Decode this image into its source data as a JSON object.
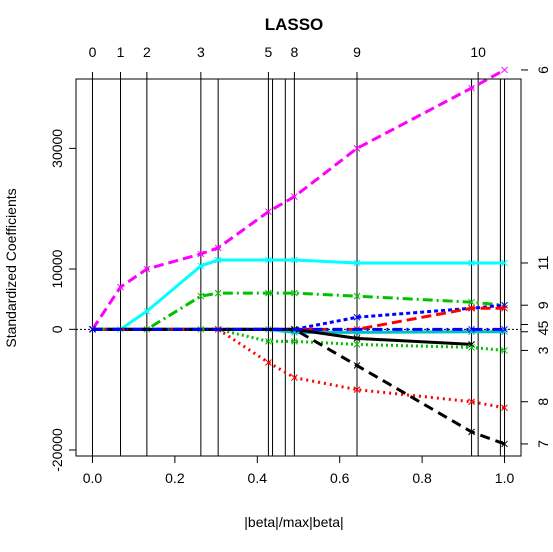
{
  "chart_data": {
    "type": "line",
    "title": "LASSO",
    "xlabel": "|beta|/max|beta|",
    "ylabel": "Standardized Coefficients",
    "xlim": [
      -0.04,
      1.04
    ],
    "ylim": [
      -21000,
      41500
    ],
    "x_ticks": [
      0.0,
      0.2,
      0.4,
      0.6,
      0.8,
      1.0
    ],
    "x_tick_labels": [
      "0.0",
      "0.2",
      "0.4",
      "0.6",
      "0.8",
      "1.0"
    ],
    "y_ticks": [
      -20000,
      0,
      10000,
      30000
    ],
    "y_tick_labels": [
      "-20000",
      "0",
      "10000",
      "30000"
    ],
    "top_axis_positions": [
      0.0,
      0.068,
      0.132,
      0.263,
      0.427,
      0.49,
      0.642,
      0.936
    ],
    "top_axis_labels": [
      "0",
      "1",
      "2",
      "3",
      "5",
      "8",
      "9",
      "10"
    ],
    "right_axis_labels": [
      "6",
      "11",
      "9",
      "5",
      "4",
      "3",
      "8",
      "7"
    ],
    "right_axis_values": [
      43000,
      11000,
      4000,
      800,
      -400,
      -3500,
      -12000,
      -19000
    ],
    "vertical_lines": [
      0.0,
      0.068,
      0.132,
      0.263,
      0.305,
      0.427,
      0.437,
      0.468,
      0.49,
      0.642,
      0.92,
      0.936,
      0.99,
      1.0
    ],
    "grid": false,
    "series": [
      {
        "color": "#ff00ff",
        "dash": "10 5",
        "x": [
          0.0,
          0.068,
          0.132,
          0.263,
          0.305,
          0.427,
          0.49,
          0.642,
          0.92,
          1.0
        ],
        "y": [
          0,
          7000,
          10000,
          12500,
          13500,
          19500,
          22000,
          30000,
          40000,
          43000
        ]
      },
      {
        "color": "#00ffff",
        "dash": "",
        "x": [
          0.0,
          0.068,
          0.132,
          0.263,
          0.305,
          0.427,
          0.49,
          0.642,
          0.92,
          1.0
        ],
        "y": [
          0,
          0,
          3000,
          10500,
          11500,
          11500,
          11500,
          11000,
          11000,
          11000
        ]
      },
      {
        "color": "#00c000",
        "dash": "10 4 2 4",
        "x": [
          0.0,
          0.132,
          0.263,
          0.305,
          0.427,
          0.49,
          0.642,
          0.92,
          1.0
        ],
        "y": [
          0,
          0,
          5500,
          6000,
          6000,
          6000,
          5500,
          4500,
          4000
        ]
      },
      {
        "color": "#0000ff",
        "dash": "4 3",
        "x": [
          0.0,
          0.49,
          0.642,
          0.92,
          1.0
        ],
        "y": [
          0,
          0,
          2000,
          3500,
          4000
        ]
      },
      {
        "color": "#ff0000",
        "dash": "10 5",
        "x": [
          0.0,
          0.49,
          0.642,
          0.92,
          1.0
        ],
        "y": [
          0,
          0,
          0,
          3500,
          3500
        ]
      },
      {
        "color": "#00c0c0",
        "dash": "",
        "x": [
          0.0,
          0.427,
          0.49,
          0.642,
          0.92,
          1.0
        ],
        "y": [
          0,
          0,
          -500,
          -500,
          -400,
          -400
        ]
      },
      {
        "color": "#000000",
        "dash": "",
        "x": [
          0.0,
          0.49,
          0.642,
          0.92
        ],
        "y": [
          0,
          0,
          -1500,
          -2500
        ]
      },
      {
        "color": "#00c000",
        "dash": "2 3",
        "x": [
          0.0,
          0.263,
          0.305,
          0.427,
          0.49,
          0.642,
          0.92,
          1.0
        ],
        "y": [
          0,
          0,
          0,
          -2000,
          -2000,
          -2500,
          -3000,
          -3500
        ]
      },
      {
        "color": "#ff0000",
        "dash": "2 4",
        "x": [
          0.0,
          0.305,
          0.427,
          0.49,
          0.642,
          0.92,
          1.0
        ],
        "y": [
          0,
          0,
          -5500,
          -8000,
          -10000,
          -12000,
          -13000
        ]
      },
      {
        "color": "#000000",
        "dash": "10 6",
        "x": [
          0.0,
          0.49,
          0.642,
          0.92,
          1.0
        ],
        "y": [
          0,
          0,
          -6000,
          -17000,
          -19000
        ]
      },
      {
        "color": "#0000ff",
        "dash": "10 4 2 4",
        "x": [
          0.0,
          0.92,
          1.0
        ],
        "y": [
          0,
          0,
          0
        ]
      }
    ]
  }
}
